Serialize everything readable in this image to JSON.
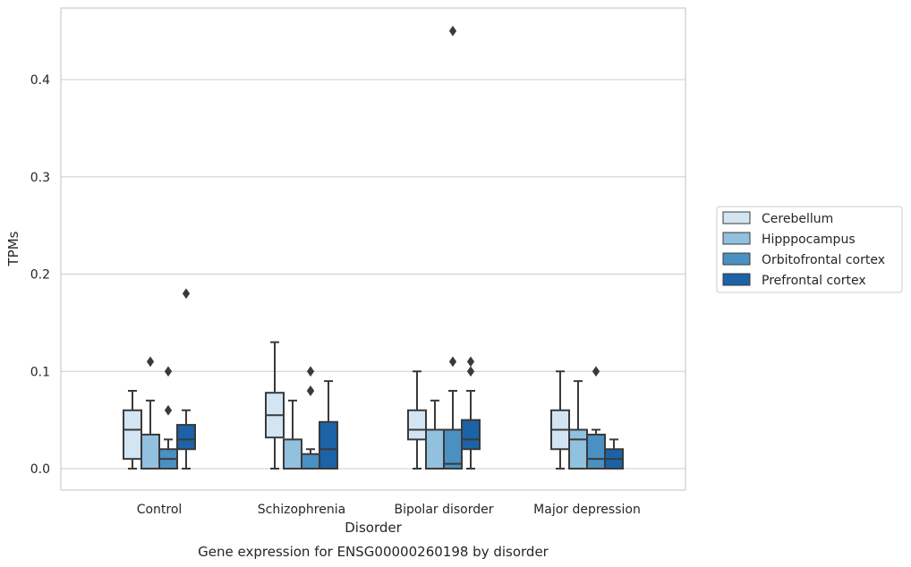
{
  "chart_data": {
    "type": "box",
    "title": "Gene expression for ENSG00000260198 by disorder",
    "xlabel": "Disorder",
    "ylabel": "TPMs",
    "ylim": [
      -0.022,
      0.475
    ],
    "yticks": [
      0.0,
      0.1,
      0.2,
      0.3,
      0.4
    ],
    "ytick_labels": [
      "0.0",
      "0.1",
      "0.2",
      "0.3",
      "0.4"
    ],
    "grid": "horizontal",
    "legend_position": "right",
    "categories": [
      "Control",
      "Schizophrenia",
      "Bipolar disorder",
      "Major depression"
    ],
    "series": [
      {
        "name": "Cerebellum",
        "color": "#d3e4f3",
        "boxes": [
          {
            "whislo": 0.0,
            "q1": 0.01,
            "med": 0.04,
            "q3": 0.06,
            "whishi": 0.08,
            "fliers": []
          },
          {
            "whislo": 0.0,
            "q1": 0.032,
            "med": 0.055,
            "q3": 0.078,
            "whishi": 0.13,
            "fliers": []
          },
          {
            "whislo": 0.0,
            "q1": 0.03,
            "med": 0.04,
            "q3": 0.06,
            "whishi": 0.1,
            "fliers": []
          },
          {
            "whislo": 0.0,
            "q1": 0.02,
            "med": 0.04,
            "q3": 0.06,
            "whishi": 0.1,
            "fliers": []
          }
        ]
      },
      {
        "name": "Hipppocampus",
        "color": "#92c0df",
        "boxes": [
          {
            "whislo": 0.0,
            "q1": 0.0,
            "med": 0.0,
            "q3": 0.035,
            "whishi": 0.07,
            "fliers": [
              0.11
            ]
          },
          {
            "whislo": 0.0,
            "q1": 0.0,
            "med": 0.0,
            "q3": 0.03,
            "whishi": 0.07,
            "fliers": []
          },
          {
            "whislo": 0.0,
            "q1": 0.0,
            "med": 0.0,
            "q3": 0.04,
            "whishi": 0.07,
            "fliers": []
          },
          {
            "whislo": 0.0,
            "q1": 0.0,
            "med": 0.03,
            "q3": 0.04,
            "whishi": 0.09,
            "fliers": []
          }
        ]
      },
      {
        "name": "Orbitofrontal cortex",
        "color": "#4a90c2",
        "boxes": [
          {
            "whislo": 0.0,
            "q1": 0.0,
            "med": 0.01,
            "q3": 0.02,
            "whishi": 0.03,
            "fliers": [
              0.06,
              0.1
            ]
          },
          {
            "whislo": 0.0,
            "q1": 0.0,
            "med": 0.0,
            "q3": 0.015,
            "whishi": 0.02,
            "fliers": [
              0.08,
              0.08,
              0.1
            ]
          },
          {
            "whislo": 0.0,
            "q1": 0.0,
            "med": 0.005,
            "q3": 0.04,
            "whishi": 0.08,
            "fliers": [
              0.11,
              0.45
            ]
          },
          {
            "whislo": 0.0,
            "q1": 0.0,
            "med": 0.01,
            "q3": 0.035,
            "whishi": 0.04,
            "fliers": [
              0.1
            ]
          }
        ]
      },
      {
        "name": "Prefrontal cortex",
        "color": "#1c62a6",
        "boxes": [
          {
            "whislo": 0.0,
            "q1": 0.02,
            "med": 0.03,
            "q3": 0.045,
            "whishi": 0.06,
            "fliers": [
              0.18
            ]
          },
          {
            "whislo": 0.0,
            "q1": 0.0,
            "med": 0.02,
            "q3": 0.048,
            "whishi": 0.09,
            "fliers": []
          },
          {
            "whislo": 0.0,
            "q1": 0.02,
            "med": 0.03,
            "q3": 0.05,
            "whishi": 0.08,
            "fliers": [
              0.1,
              0.11
            ]
          },
          {
            "whislo": 0.0,
            "q1": 0.0,
            "med": 0.01,
            "q3": 0.02,
            "whishi": 0.03,
            "fliers": []
          }
        ]
      }
    ]
  }
}
